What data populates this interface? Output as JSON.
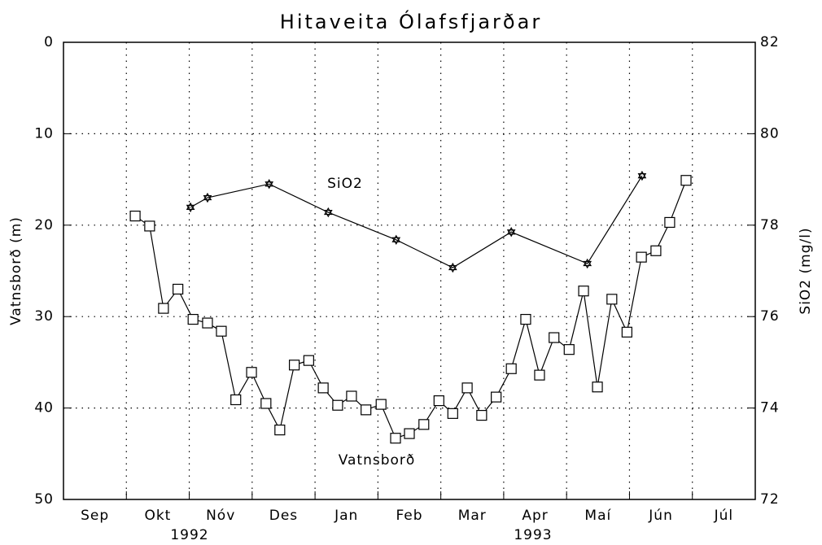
{
  "chart_data": {
    "type": "line",
    "title": "Hitaveita Ólafsfjarðar",
    "ylabel": "Vatnsborð (m)",
    "y2label": "SiO2 (mg/l)",
    "categories": [
      "Sep",
      "Okt",
      "Nóv",
      "Des",
      "Jan",
      "Feb",
      "Mar",
      "Apr",
      "Maí",
      "Jún",
      "Júl"
    ],
    "xlim": [
      0,
      11
    ],
    "xticks": [
      1,
      2,
      3,
      4,
      5,
      6,
      7,
      8,
      9,
      10
    ],
    "ylim": [
      50,
      0
    ],
    "yticks": [
      0,
      10,
      20,
      30,
      40,
      50
    ],
    "y2lim": [
      72,
      82
    ],
    "y2ticks": [
      72,
      74,
      76,
      78,
      80,
      82
    ],
    "grid": true,
    "annotations": [
      "1992",
      "1993",
      "SiO2",
      "Vatnsborð"
    ],
    "series": [
      {
        "name": "Vatnsborð",
        "color": "#000000",
        "marker": "square",
        "x": [
          1.14,
          1.37,
          1.59,
          1.82,
          2.06,
          2.29,
          2.51,
          2.74,
          2.99,
          3.22,
          3.44,
          3.67,
          3.9,
          4.13,
          4.36,
          4.58,
          4.81,
          5.05,
          5.28,
          5.5,
          5.73,
          5.97,
          6.19,
          6.42,
          6.65,
          6.88,
          7.12,
          7.35,
          7.57,
          7.8,
          8.04,
          8.27,
          8.49,
          8.72,
          8.96,
          9.19,
          9.42,
          9.64,
          9.9
        ],
        "values": [
          19.0,
          20.1,
          29.1,
          27.0,
          30.3,
          30.7,
          31.6,
          39.1,
          36.1,
          39.5,
          42.4,
          35.3,
          34.8,
          37.8,
          39.7,
          38.7,
          40.2,
          39.6,
          43.3,
          42.8,
          41.8,
          39.2,
          40.6,
          37.8,
          40.8,
          38.8,
          35.7,
          30.3,
          36.4,
          32.3,
          33.6,
          27.2,
          37.7,
          28.1,
          31.7,
          23.5,
          22.8,
          19.7,
          15.1
        ]
      },
      {
        "name": "SiO2",
        "color": "#000000",
        "marker": "star",
        "axis": "y2",
        "x": [
          2.02,
          2.29,
          3.27,
          4.21,
          5.29,
          6.19,
          7.12,
          8.33,
          9.2
        ],
        "values": [
          78.39,
          78.6,
          78.9,
          78.28,
          77.68,
          77.07,
          77.85,
          77.16,
          79.08
        ]
      }
    ]
  }
}
